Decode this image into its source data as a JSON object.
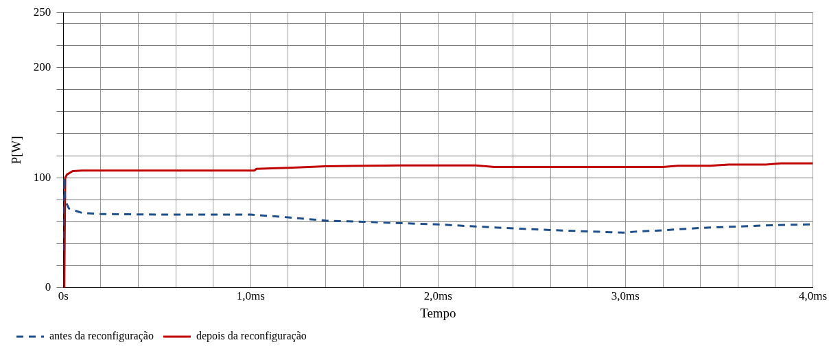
{
  "chart_data": {
    "type": "line",
    "xlabel": "Tempo",
    "ylabel": "P[W]",
    "xlim": [
      0,
      4
    ],
    "xticks": [
      {
        "value": 0,
        "label": "0s"
      },
      {
        "value": 0.2,
        "label": null
      },
      {
        "value": 0.4,
        "label": null
      },
      {
        "value": 0.6,
        "label": null
      },
      {
        "value": 0.8,
        "label": null
      },
      {
        "value": 1,
        "label": "1,0ms"
      },
      {
        "value": 1.2,
        "label": null
      },
      {
        "value": 1.4,
        "label": null
      },
      {
        "value": 1.6,
        "label": null
      },
      {
        "value": 1.8,
        "label": null
      },
      {
        "value": 2,
        "label": "2,0ms"
      },
      {
        "value": 2.2,
        "label": null
      },
      {
        "value": 2.4,
        "label": null
      },
      {
        "value": 2.6,
        "label": null
      },
      {
        "value": 2.8,
        "label": null
      },
      {
        "value": 3,
        "label": "3,0ms"
      },
      {
        "value": 3.2,
        "label": null
      },
      {
        "value": 3.4,
        "label": null
      },
      {
        "value": 3.6,
        "label": null
      },
      {
        "value": 3.8,
        "label": null
      },
      {
        "value": 4,
        "label": "4,0ms"
      }
    ],
    "ylim": [
      0,
      250
    ],
    "yticks": [
      0,
      {
        "value": 20,
        "label": null
      },
      {
        "value": 40,
        "label": null
      },
      {
        "value": 60,
        "label": null
      },
      {
        "value": 80,
        "label": null
      },
      100,
      {
        "value": 120,
        "label": null
      },
      {
        "value": 140,
        "label": null
      },
      {
        "value": 160,
        "label": null
      },
      {
        "value": 180,
        "label": null
      },
      200,
      {
        "value": 220,
        "label": null
      },
      {
        "value": 240,
        "label": null
      },
      250
    ],
    "grid": true,
    "legend": "bottom left",
    "marker": "none",
    "series": [
      {
        "name": "antes da reconfiguração",
        "color": "#1f4e8c",
        "line_style": "dashed",
        "x": [
          0,
          0.003,
          0.01,
          0.03,
          0.1,
          0.2,
          0.5,
          1.0,
          1.2,
          1.4,
          1.6,
          1.8,
          2.0,
          2.2,
          2.4,
          2.6,
          2.8,
          3.0,
          3.05,
          3.2,
          3.4,
          3.6,
          3.8,
          4.0
        ],
        "values": [
          34,
          100,
          79,
          72,
          68,
          67,
          66.5,
          66.5,
          64,
          61,
          60,
          58.7,
          57.6,
          55.7,
          54,
          52.5,
          51.2,
          50.1,
          51,
          52.3,
          54.4,
          55.7,
          57,
          57.6
        ]
      },
      {
        "name": "depois da reconfiguração",
        "color": "#c00000",
        "line_style": "solid",
        "x": [
          0,
          0.005,
          0.01,
          0.02,
          0.05,
          0.1,
          1.02,
          1.03,
          1.2,
          1.4,
          1.8,
          2.2,
          2.3,
          3.2,
          3.28,
          3.45,
          3.55,
          3.75,
          3.83,
          4.0
        ],
        "values": [
          0,
          0,
          100,
          103,
          106,
          106.5,
          106.5,
          108,
          109,
          110.4,
          111.2,
          111.2,
          109.7,
          109.7,
          110.8,
          110.8,
          112,
          112,
          113,
          113
        ]
      }
    ]
  }
}
